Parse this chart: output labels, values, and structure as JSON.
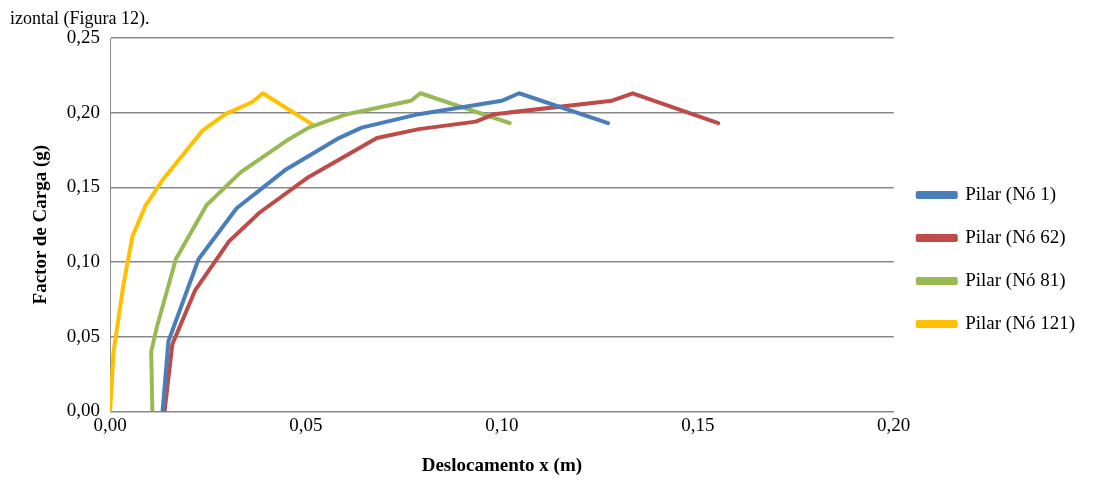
{
  "chart_data": {
    "type": "line",
    "xlabel": "Deslocamento x (m)",
    "ylabel": "Factor de Carga (g)",
    "annotations": [
      "izontal (Figura 12)."
    ],
    "xlim": [
      0,
      0.2
    ],
    "xticks": [
      {
        "value": 0,
        "label": "0,00"
      },
      {
        "value": 0.05,
        "label": "0,05"
      },
      {
        "value": 0.1,
        "label": "0,10"
      },
      {
        "value": 0.15,
        "label": "0,15"
      },
      {
        "value": 0.2,
        "label": "0,20"
      }
    ],
    "ylim": [
      0,
      0.25
    ],
    "yticks": [
      {
        "value": 0,
        "label": "0,00"
      },
      {
        "value": 0.05,
        "label": "0,05"
      },
      {
        "value": 0.1,
        "label": "0,10"
      },
      {
        "value": 0.15,
        "label": "0,15"
      },
      {
        "value": 0.2,
        "label": "0,20"
      },
      {
        "value": 0.25,
        "label": "0,25"
      }
    ],
    "grid": "y",
    "legend": "right",
    "marker": "none",
    "line_style": "solid",
    "series": [
      {
        "name": "Pilar (Nó 1)",
        "color": "#4a7ebb",
        "x": [
          0.0134,
          0.0149,
          0.0226,
          0.0323,
          0.0449,
          0.0584,
          0.0642,
          0.0788,
          0.1,
          0.1044,
          0.1271
        ],
        "values": [
          0,
          0.047,
          0.102,
          0.136,
          0.162,
          0.183,
          0.19,
          0.199,
          0.208,
          0.213,
          0.193
        ]
      },
      {
        "name": "Pilar (Nó 62)",
        "color": "#be4b48",
        "x": [
          0.0139,
          0.0159,
          0.0217,
          0.0304,
          0.0381,
          0.0507,
          0.0681,
          0.0788,
          0.0933,
          0.0981,
          0.1281,
          0.1334,
          0.1552
        ],
        "values": [
          0,
          0.045,
          0.081,
          0.114,
          0.133,
          0.157,
          0.183,
          0.189,
          0.194,
          0.199,
          0.208,
          0.213,
          0.193
        ]
      },
      {
        "name": "Pilar (Nó 81)",
        "color": "#98b954",
        "x": [
          0.0108,
          0.0105,
          0.012,
          0.0168,
          0.0246,
          0.0333,
          0.0449,
          0.0507,
          0.0604,
          0.0768,
          0.0792,
          0.102
        ],
        "values": [
          0,
          0.04,
          0.057,
          0.102,
          0.138,
          0.16,
          0.181,
          0.19,
          0.199,
          0.208,
          0.213,
          0.193
        ]
      },
      {
        "name": "Pilar (Nó 121)",
        "color": "#ffc000",
        "x": [
          0,
          0.0009,
          0.0033,
          0.0057,
          0.0091,
          0.0134,
          0.0236,
          0.0294,
          0.0362,
          0.0381,
          0.039,
          0.0517
        ],
        "values": [
          0,
          0.04,
          0.083,
          0.117,
          0.138,
          0.155,
          0.188,
          0.199,
          0.207,
          0.211,
          0.213,
          0.192
        ]
      }
    ]
  }
}
